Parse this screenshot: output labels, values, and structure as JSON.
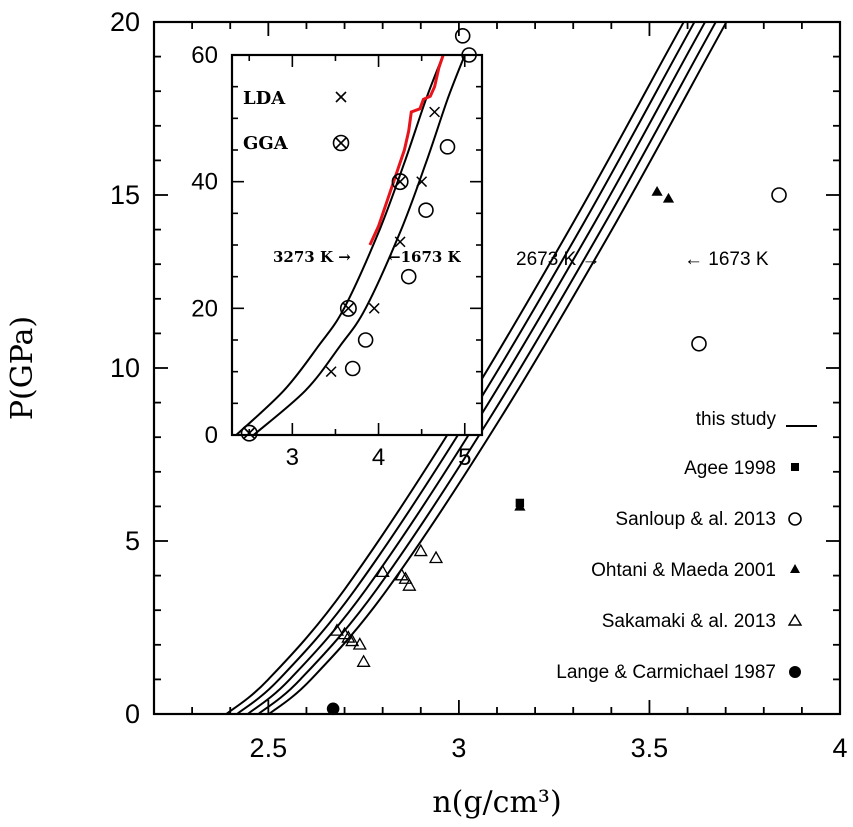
{
  "chart_data": {
    "main": {
      "type": "scatter",
      "xlabel": "n(g/cm³)",
      "ylabel": "P(GPa)",
      "xlim": [
        2.2,
        4.0
      ],
      "ylim": [
        0,
        20
      ],
      "xticks": [
        "2.5",
        "3",
        "3.5",
        "4"
      ],
      "yticks": [
        "0",
        "5",
        "10",
        "15",
        "20"
      ],
      "annotations": [
        "2673 K →",
        "← 1673 K"
      ],
      "legend_placement": "bottom-right",
      "legend": [
        {
          "label": "this study",
          "marker": "line"
        },
        {
          "label": "Agee 1998",
          "marker": "filled-square"
        },
        {
          "label": "Sanloup & al. 2013",
          "marker": "open-circle"
        },
        {
          "label": "Ohtani & Maeda 2001",
          "marker": "filled-triangle"
        },
        {
          "label": "Sakamaki & al. 2013",
          "marker": "open-triangle"
        },
        {
          "label": "Lange & Carmichael 1987",
          "marker": "filled-circle"
        }
      ],
      "curves": [
        {
          "points": [
            [
              2.39,
              0
            ],
            [
              2.5,
              1.0
            ],
            [
              2.7,
              3.6
            ],
            [
              3.0,
              8.6
            ],
            [
              3.3,
              14.2
            ],
            [
              3.55,
              19.2
            ],
            [
              3.59,
              20
            ]
          ]
        },
        {
          "points": [
            [
              2.418,
              0
            ],
            [
              2.528,
              1.0
            ],
            [
              2.728,
              3.6
            ],
            [
              3.028,
              8.6
            ],
            [
              3.328,
              14.2
            ],
            [
              3.578,
              19.2
            ],
            [
              3.618,
              20
            ]
          ]
        },
        {
          "points": [
            [
              2.446,
              0
            ],
            [
              2.556,
              1.0
            ],
            [
              2.756,
              3.6
            ],
            [
              3.056,
              8.6
            ],
            [
              3.356,
              14.2
            ],
            [
              3.606,
              19.2
            ],
            [
              3.646,
              20
            ]
          ]
        },
        {
          "points": [
            [
              2.474,
              0
            ],
            [
              2.584,
              1.0
            ],
            [
              2.784,
              3.6
            ],
            [
              3.084,
              8.6
            ],
            [
              3.384,
              14.2
            ],
            [
              3.634,
              19.2
            ],
            [
              3.674,
              20
            ]
          ]
        },
        {
          "points": [
            [
              2.502,
              0
            ],
            [
              2.612,
              1.0
            ],
            [
              2.812,
              3.6
            ],
            [
              3.112,
              8.6
            ],
            [
              3.412,
              14.2
            ],
            [
              3.662,
              19.2
            ],
            [
              3.702,
              20
            ]
          ]
        }
      ],
      "series": [
        {
          "name": "Agee 1998",
          "marker": "filled-square",
          "points": [
            [
              3.16,
              6.1
            ]
          ]
        },
        {
          "name": "Sanloup & al. 2013",
          "marker": "open-circle",
          "points": [
            [
              3.01,
              19.6
            ],
            [
              3.63,
              10.7
            ],
            [
              3.84,
              15.0
            ]
          ]
        },
        {
          "name": "Ohtani & Maeda 2001",
          "marker": "filled-triangle",
          "points": [
            [
              3.16,
              6.0
            ],
            [
              3.52,
              15.1
            ],
            [
              3.55,
              14.9
            ]
          ]
        },
        {
          "name": "Sakamaki & al. 2013",
          "marker": "open-triangle",
          "points": [
            [
              2.68,
              2.4
            ],
            [
              2.7,
              2.3
            ],
            [
              2.71,
              2.2
            ],
            [
              2.72,
              2.1
            ],
            [
              2.74,
              2.0
            ],
            [
              2.75,
              1.5
            ],
            [
              2.8,
              4.1
            ],
            [
              2.85,
              4.0
            ],
            [
              2.86,
              3.9
            ],
            [
              2.87,
              3.7
            ],
            [
              2.9,
              4.7
            ],
            [
              2.94,
              4.5
            ]
          ]
        },
        {
          "name": "Lange & Carmichael 1987",
          "marker": "filled-circle",
          "points": [
            [
              2.67,
              0.15
            ]
          ]
        }
      ]
    },
    "inset": {
      "type": "line",
      "xlim": [
        2.3,
        5.2
      ],
      "ylim": [
        0,
        60
      ],
      "xticks": [
        "3",
        "4",
        "5"
      ],
      "yticks": [
        "0",
        "20",
        "40",
        "60"
      ],
      "annotations": [
        "3273 K →",
        "←1673 K"
      ],
      "legend": [
        {
          "label": "LDA",
          "marker": "cross"
        },
        {
          "label": "GGA",
          "marker": "circle-cross"
        }
      ],
      "curves": [
        {
          "points": [
            [
              2.35,
              0
            ],
            [
              2.9,
              7
            ],
            [
              3.3,
              14
            ],
            [
              3.6,
              20
            ],
            [
              4.0,
              32
            ],
            [
              4.3,
              43
            ],
            [
              4.55,
              53
            ],
            [
              4.75,
              60
            ]
          ]
        },
        {
          "points": [
            [
              2.55,
              0
            ],
            [
              3.15,
              7
            ],
            [
              3.55,
              14
            ],
            [
              3.85,
              20
            ],
            [
              4.25,
              32
            ],
            [
              4.55,
              43
            ],
            [
              4.8,
              53
            ],
            [
              5.0,
              60
            ]
          ]
        }
      ],
      "red_curve": {
        "points": [
          [
            3.9,
            30
          ],
          [
            4.0,
            33
          ],
          [
            4.1,
            37
          ],
          [
            4.2,
            41
          ],
          [
            4.3,
            45
          ],
          [
            4.35,
            48
          ],
          [
            4.38,
            51
          ],
          [
            4.48,
            51.5
          ],
          [
            4.52,
            53
          ],
          [
            4.6,
            53.5
          ],
          [
            4.65,
            55
          ],
          [
            4.7,
            58
          ],
          [
            4.75,
            60
          ]
        ]
      },
      "series": [
        {
          "name": "LDA",
          "marker": "cross",
          "points": [
            [
              2.5,
              0.3
            ],
            [
              3.45,
              10
            ],
            [
              3.95,
              20
            ],
            [
              4.25,
              30.5
            ],
            [
              4.5,
              40
            ],
            [
              4.65,
              51
            ]
          ]
        },
        {
          "name": "GGA",
          "marker": "circle-cross",
          "points": [
            [
              2.5,
              0.3
            ],
            [
              3.65,
              20
            ],
            [
              4.25,
              40
            ]
          ]
        },
        {
          "marker": "open-circle",
          "points": [
            [
              3.7,
              10.5
            ],
            [
              3.85,
              15
            ],
            [
              4.35,
              25
            ],
            [
              4.55,
              35.5
            ],
            [
              4.8,
              45.5
            ],
            [
              5.05,
              60
            ]
          ]
        }
      ]
    }
  }
}
